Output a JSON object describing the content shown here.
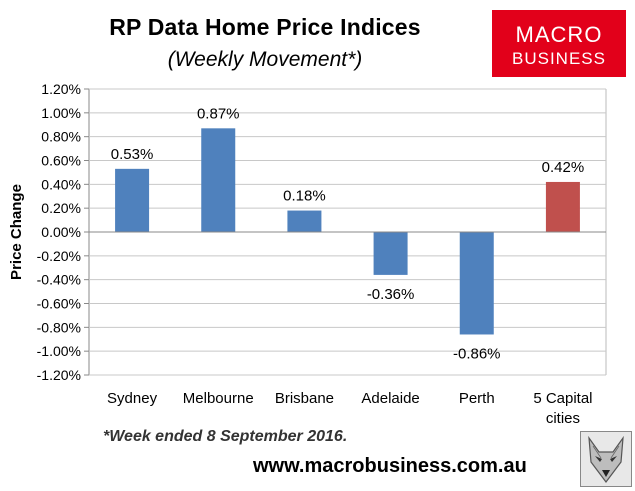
{
  "chart_data": {
    "type": "bar",
    "title": "RP Data Home Price Indices",
    "subtitle": "(Weekly Movement*)",
    "xlabel": "",
    "ylabel": "Price Change",
    "ylim": [
      -1.2,
      1.2
    ],
    "ytick_step": 0.2,
    "categories": [
      {
        "line1": "Sydney",
        "line2": ""
      },
      {
        "line1": "Melbourne",
        "line2": ""
      },
      {
        "line1": "Brisbane",
        "line2": ""
      },
      {
        "line1": "Adelaide",
        "line2": ""
      },
      {
        "line1": "Perth",
        "line2": ""
      },
      {
        "line1": "5 Capital",
        "line2": "cities"
      }
    ],
    "values": [
      0.53,
      0.87,
      0.18,
      -0.36,
      -0.86,
      0.42
    ],
    "data_labels": [
      "0.53%",
      "0.87%",
      "0.18%",
      "-0.36%",
      "-0.86%",
      "0.42%"
    ],
    "yticks": [
      "1.20%",
      "1.00%",
      "0.80%",
      "0.60%",
      "0.40%",
      "0.20%",
      "0.00%",
      "-0.20%",
      "-0.40%",
      "-0.60%",
      "-0.80%",
      "-1.00%",
      "-1.20%"
    ],
    "colors": {
      "city": "#4f81bd",
      "aggregate": "#c0504d"
    },
    "grid": true,
    "legend": "none"
  },
  "logo": {
    "line1": "MACRO",
    "line2": "BUSINESS",
    "color": "#e2001a"
  },
  "footnote": "*Week ended 8 September 2016.",
  "website": "www.macrobusiness.com.au"
}
